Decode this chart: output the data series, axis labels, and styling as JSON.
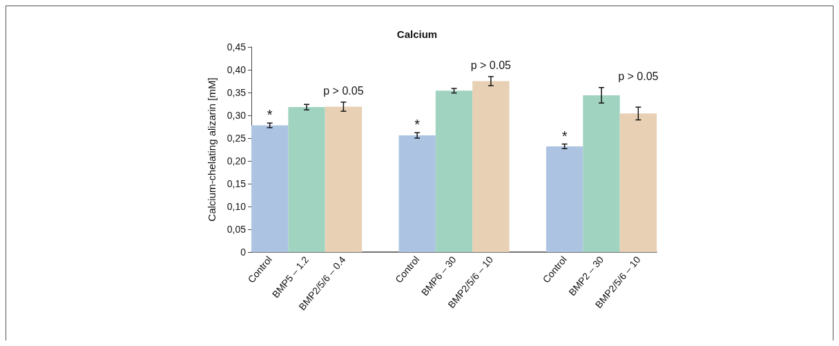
{
  "chart_data": {
    "type": "bar",
    "title": "Calcium",
    "ylabel": "Calcium-chelating alizarin [mM]",
    "categories": [
      "Control",
      "BMP5 – 1.2",
      "BMP2/5/6 – 0.4",
      null,
      "Control",
      "BMP6 – 30",
      "BMP2/5/6 – 10",
      null,
      "Control",
      "BMP2 – 30",
      "BMP2/5/6 – 10"
    ],
    "values": [
      0.278,
      0.318,
      0.319,
      null,
      0.256,
      0.354,
      0.375,
      null,
      0.232,
      0.344,
      0.304
    ],
    "errors": [
      0.005,
      0.006,
      0.01,
      null,
      0.006,
      0.005,
      0.01,
      null,
      0.005,
      0.017,
      0.014
    ],
    "colors": [
      "#acc4e2",
      "#a1d3c1",
      "#e8d0b4",
      null,
      "#acc4e2",
      "#a1d3c1",
      "#e8d0b4",
      null,
      "#acc4e2",
      "#a1d3c1",
      "#e8d0b4"
    ],
    "ylim": [
      0,
      0.45
    ],
    "yticks": [
      0,
      {
        "value": 0.05,
        "label": "0,05"
      },
      {
        "value": 0.1,
        "label": "0,10"
      },
      {
        "value": 0.15,
        "label": "0,15"
      },
      {
        "value": 0.2,
        "label": "0,20"
      },
      {
        "value": 0.25,
        "label": "0,25"
      },
      {
        "value": 0.3,
        "label": "0,30"
      },
      {
        "value": 0.35,
        "label": "0,35"
      },
      {
        "value": 0.4,
        "label": "0,40"
      },
      {
        "value": 0.45,
        "label": "0,45"
      }
    ],
    "grid": false,
    "annotations": [
      "*",
      "p > 0.05",
      "*",
      "p > 0.05",
      "*",
      "p > 0.05"
    ]
  }
}
